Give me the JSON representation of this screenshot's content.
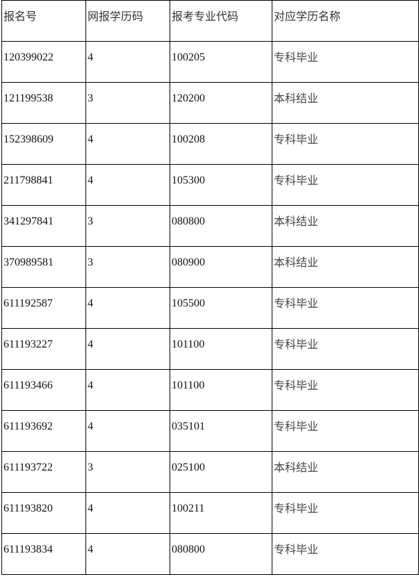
{
  "table": {
    "headers": [
      "报名号",
      "网报学历码",
      "报考专业代码",
      "对应学历名称"
    ],
    "rows": [
      [
        "120399022",
        "4",
        "100205",
        "专科毕业"
      ],
      [
        "121199538",
        "3",
        "120200",
        "本科结业"
      ],
      [
        "152398609",
        "4",
        "100208",
        "专科毕业"
      ],
      [
        "211798841",
        "4",
        "105300",
        "专科毕业"
      ],
      [
        "341297841",
        "3",
        "080800",
        "本科结业"
      ],
      [
        "370989581",
        "3",
        "080900",
        "本科结业"
      ],
      [
        "611192587",
        "4",
        "105500",
        "专科毕业"
      ],
      [
        "611193227",
        "4",
        "101100",
        "专科毕业"
      ],
      [
        "611193466",
        "4",
        "101100",
        "专科毕业"
      ],
      [
        "611193692",
        "4",
        "035101",
        "专科毕业"
      ],
      [
        "611193722",
        "3",
        "025100",
        "本科结业"
      ],
      [
        "611193820",
        "4",
        "100211",
        "专科毕业"
      ],
      [
        "611193834",
        "4",
        "080800",
        "专科毕业"
      ]
    ]
  }
}
